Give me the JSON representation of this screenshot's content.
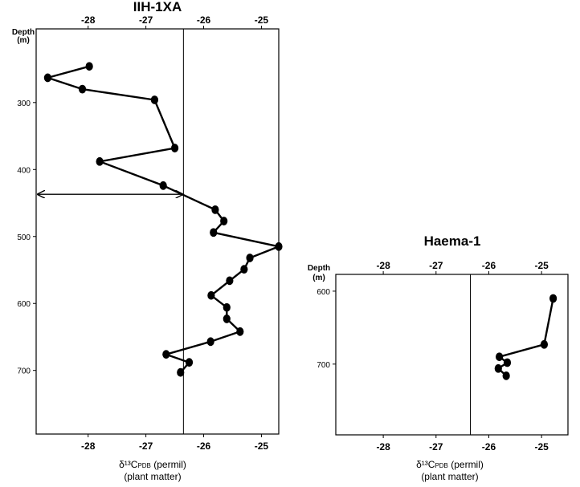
{
  "chart_data": [
    {
      "type": "line",
      "title": "IIH-1XA",
      "ylabel_line1": "Depth",
      "ylabel_line2": "(m)",
      "xlabel_line1": "δ¹³C",
      "xlabel_sub": "PDB",
      "xlabel_rest": " (permil)",
      "xlabel_line2": "(plant matter)",
      "xlim": [
        -28.9,
        -24.7
      ],
      "ylim": [
        190,
        795
      ],
      "x_ticks": [
        -28,
        -27,
        -26,
        -25
      ],
      "x_tick_labels": [
        "-28",
        "-27",
        "-26",
        "-25"
      ],
      "x_tick_labels_bottom": [
        "-28",
        "-27",
        "-26",
        "-25"
      ],
      "y_ticks": [
        300,
        400,
        500,
        600,
        700
      ],
      "y_tick_labels": [
        "300",
        "400",
        "500",
        "600",
        "700"
      ],
      "reference_x": -26.35,
      "arrow": {
        "y": 437,
        "x_from": -28.9,
        "x_to": -26.35
      },
      "series": [
        {
          "x": [
            -27.98,
            -28.7,
            -28.1,
            -26.85,
            -26.5,
            -27.8,
            -26.7,
            -25.8,
            -25.65,
            -25.83,
            -24.7,
            -25.2,
            -25.3,
            -25.55,
            -25.87,
            -25.6,
            -25.6,
            -25.37,
            -25.88,
            -26.65,
            -26.25,
            -26.4
          ],
          "y": [
            246,
            263,
            280,
            296,
            368,
            388,
            424,
            460,
            477,
            494,
            515,
            532,
            549,
            566,
            588,
            606,
            623,
            642,
            657,
            676,
            688,
            703
          ]
        }
      ]
    },
    {
      "type": "line",
      "title": "Haema-1",
      "ylabel_line1": "Depth",
      "ylabel_line2": "(m)",
      "xlabel_line1": "δ¹³C",
      "xlabel_sub": "PDB",
      "xlabel_rest": " (permil)",
      "xlabel_line2": "(plant matter)",
      "xlim": [
        -28.9,
        -24.5
      ],
      "ylim": [
        577,
        797
      ],
      "x_ticks": [
        -28,
        -27,
        -26,
        -25
      ],
      "x_tick_labels": [
        "-28",
        "-27",
        "-26",
        "-25"
      ],
      "x_tick_labels_bottom": [
        "-28",
        "-27",
        "-26",
        "-25"
      ],
      "y_ticks": [
        600,
        700
      ],
      "y_tick_labels": [
        "600",
        "700"
      ],
      "reference_x": -26.35,
      "series": [
        {
          "x": [
            -24.78,
            -24.95,
            -25.8,
            -25.65,
            -25.82,
            -25.67
          ],
          "y": [
            610,
            673,
            690,
            698,
            706,
            716
          ]
        }
      ]
    }
  ]
}
